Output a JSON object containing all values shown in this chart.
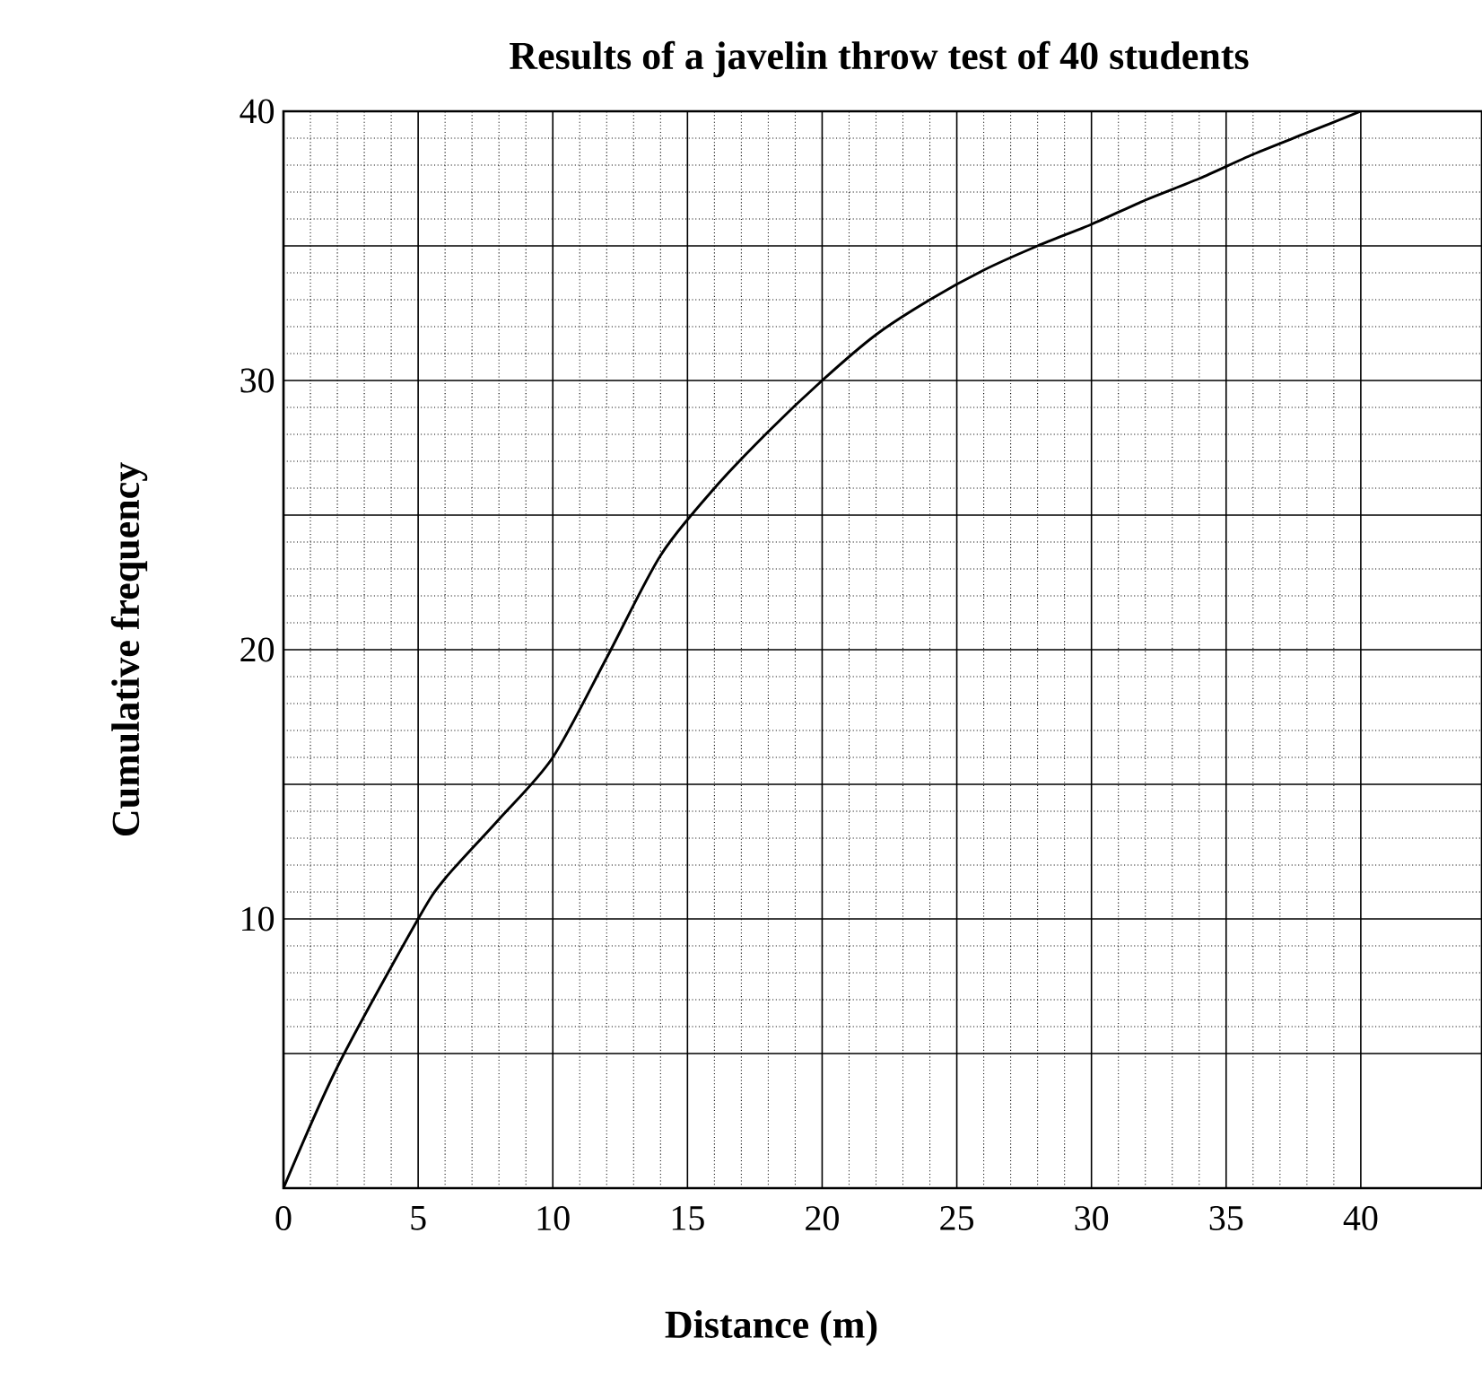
{
  "chart_data": {
    "type": "line",
    "title": "Results of a javelin throw test of 40 students",
    "xlabel": "Distance (m)",
    "ylabel": "Cumulative frequency",
    "x": [
      0,
      2,
      5,
      6,
      8,
      10,
      12,
      14,
      16,
      18,
      20,
      22,
      24,
      26,
      28,
      30,
      32,
      34,
      36,
      38,
      40
    ],
    "series": [
      {
        "color": "#000000",
        "values": [
          0,
          4.5,
          10,
          11.5,
          13.7,
          16,
          19.7,
          23.5,
          26,
          28.1,
          30,
          31.7,
          33,
          34.1,
          35,
          35.8,
          36.7,
          37.5,
          38.4,
          39.2,
          40
        ]
      }
    ],
    "xlim": [
      0,
      44.5
    ],
    "ylim": [
      0,
      40
    ],
    "xticks": [
      0,
      5,
      10,
      15,
      20,
      25,
      30,
      35,
      40
    ],
    "yticks": [
      {
        "value": 5,
        "label": null
      },
      10,
      {
        "value": 15,
        "label": null
      },
      20,
      {
        "value": 25,
        "label": null
      },
      30,
      {
        "value": 35,
        "label": null
      },
      40
    ],
    "grid": true,
    "marker": "none",
    "line_style": "solid"
  }
}
